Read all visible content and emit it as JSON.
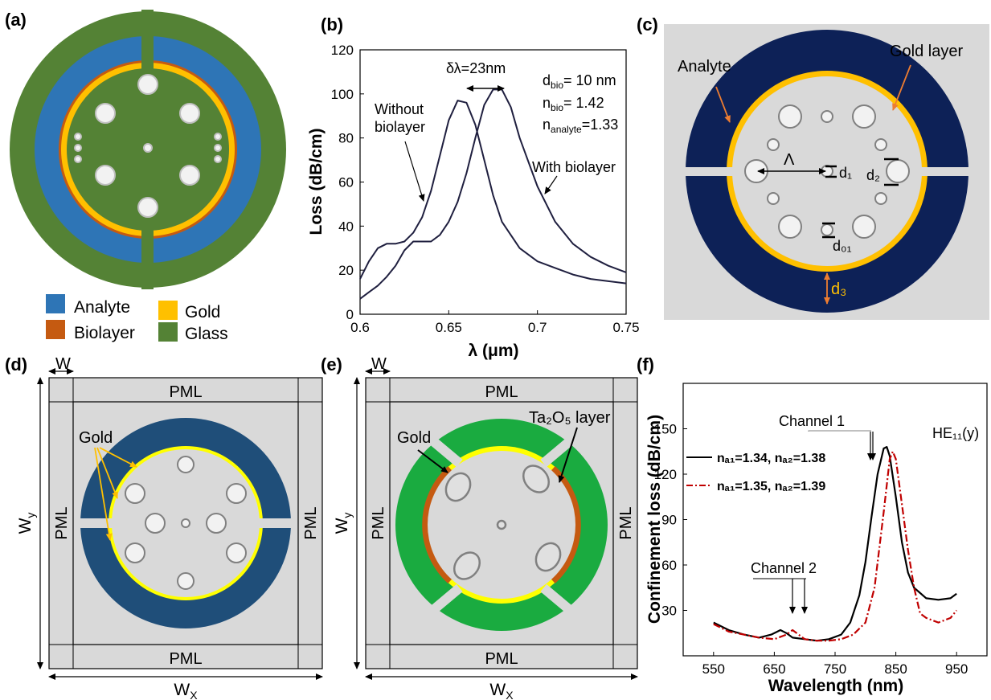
{
  "panels": {
    "a": {
      "label": "(a)",
      "legend": [
        {
          "name": "Analyte",
          "color": "#2e75b6"
        },
        {
          "name": "Gold",
          "color": "#ffc000"
        },
        {
          "name": "Biolayer",
          "color": "#c55a11"
        },
        {
          "name": "Glass",
          "color": "#548235"
        }
      ]
    },
    "b": {
      "label": "(b)",
      "annotations": {
        "delta": "δλ=23nm",
        "dbio_main": "d",
        "dbio_sub": "bio",
        "dbio_val": "= 10 nm",
        "nbio_main": "n",
        "nbio_sub": "bio",
        "nbio_val": "= 1.42",
        "nan_main": "n",
        "nan_sub": "analyte",
        "nan_val": "=1.33",
        "without_1": "Without",
        "without_2": "biolayer",
        "with": "With biolayer"
      }
    },
    "c": {
      "label": "(c)",
      "labels": {
        "analyte": "Analyte",
        "gold": "Gold layer",
        "lambda": "Λ",
        "d1": "d₁",
        "d2": "d₂",
        "d01": "d₀₁",
        "d3": "d₃"
      },
      "colors": {
        "bg": "#d9d9d9",
        "ring": "#0d2157",
        "gold": "#ffc000",
        "arrow": "#ed7d31"
      }
    },
    "d": {
      "label": "(d)",
      "labels": {
        "w": "W",
        "pml": "PML",
        "gold": "Gold",
        "wy_main": "W",
        "wy_sub": "y",
        "wx_main": "W",
        "wx_sub": "X"
      },
      "colors": {
        "ring": "#1f4e79",
        "gold": "#ffff00"
      }
    },
    "e": {
      "label": "(e)",
      "labels": {
        "w": "W",
        "pml": "PML",
        "gold": "Gold",
        "ta": "Ta₂O₅ layer",
        "wy_main": "W",
        "wy_sub": "y",
        "wx_main": "W",
        "wx_sub": "X"
      },
      "colors": {
        "ring": "#1aab40",
        "gold": "#ffff00",
        "ta": "#c55a11"
      }
    },
    "f": {
      "label": "(f)",
      "labels": {
        "channel1": "Channel 1",
        "channel2": "Channel 2",
        "mode": "HE₁₁(y)",
        "leg1": "nₐ₁=1.34, nₐ₂=1.38",
        "leg2": "nₐ₁=1.35, nₐ₂=1.39"
      }
    }
  },
  "chart_data": [
    {
      "type": "line",
      "panel": "b",
      "xlabel": "λ (μm)",
      "ylabel": "Loss (dB/cm)",
      "xlim": [
        0.6,
        0.75
      ],
      "ylim": [
        0,
        120
      ],
      "xticks": [
        "0.6",
        "0.65",
        "0.7",
        "0.75"
      ],
      "yticks": [
        "0",
        "20",
        "40",
        "60",
        "80",
        "100",
        "120"
      ],
      "series": [
        {
          "x": [
            0.6,
            0.605,
            0.61,
            0.615,
            0.62,
            0.625,
            0.63,
            0.635,
            0.64,
            0.645,
            0.65,
            0.655,
            0.66,
            0.665,
            0.67,
            0.675,
            0.68,
            0.69,
            0.7,
            0.71,
            0.72,
            0.73,
            0.74,
            0.75
          ],
          "values": [
            16,
            24,
            30,
            32,
            32,
            33,
            37,
            44,
            56,
            72,
            88,
            97,
            96,
            86,
            70,
            54,
            42,
            30,
            24,
            21,
            18,
            16,
            15,
            14
          ]
        },
        {
          "x": [
            0.6,
            0.605,
            0.61,
            0.615,
            0.62,
            0.625,
            0.63,
            0.635,
            0.64,
            0.645,
            0.65,
            0.655,
            0.66,
            0.665,
            0.67,
            0.675,
            0.68,
            0.685,
            0.69,
            0.7,
            0.71,
            0.72,
            0.73,
            0.74,
            0.75
          ],
          "values": [
            7,
            10,
            13,
            17,
            22,
            29,
            33,
            33,
            33,
            36,
            42,
            51,
            64,
            80,
            95,
            102,
            102,
            94,
            80,
            58,
            42,
            32,
            26,
            22,
            19
          ]
        }
      ]
    },
    {
      "type": "line",
      "panel": "f",
      "xlabel": "Wavelength (nm)",
      "ylabel": "Confinement loss (dB/cm)",
      "xlim": [
        500,
        1000
      ],
      "ylim": [
        0,
        180
      ],
      "xticks": [
        "550",
        "650",
        "750",
        "850",
        "950"
      ],
      "yticks": [
        "30",
        "60",
        "90",
        "120",
        "150"
      ],
      "series": [
        {
          "name": "nₐ₁=1.34, nₐ₂=1.38",
          "color": "#000000",
          "x": [
            550,
            575,
            600,
            625,
            645,
            660,
            670,
            680,
            700,
            720,
            740,
            760,
            775,
            790,
            800,
            810,
            820,
            830,
            835,
            840,
            850,
            860,
            870,
            880,
            900,
            920,
            940,
            950
          ],
          "values": [
            22,
            17,
            14,
            12,
            14,
            17,
            15,
            12,
            11,
            10,
            11,
            14,
            22,
            40,
            62,
            92,
            120,
            137,
            138,
            132,
            105,
            75,
            55,
            45,
            38,
            37,
            38,
            41
          ]
        },
        {
          "name": "nₐ₁=1.35, nₐ₂=1.39",
          "color": "#c00000",
          "x": [
            550,
            575,
            600,
            625,
            650,
            670,
            680,
            690,
            700,
            720,
            740,
            760,
            780,
            800,
            815,
            830,
            840,
            845,
            850,
            860,
            870,
            880,
            890,
            900,
            920,
            940,
            950
          ],
          "values": [
            21,
            16,
            14,
            12,
            11,
            14,
            17,
            14,
            11,
            10,
            10,
            11,
            14,
            22,
            45,
            95,
            130,
            135,
            130,
            100,
            70,
            45,
            28,
            25,
            22,
            25,
            30
          ]
        }
      ]
    }
  ]
}
